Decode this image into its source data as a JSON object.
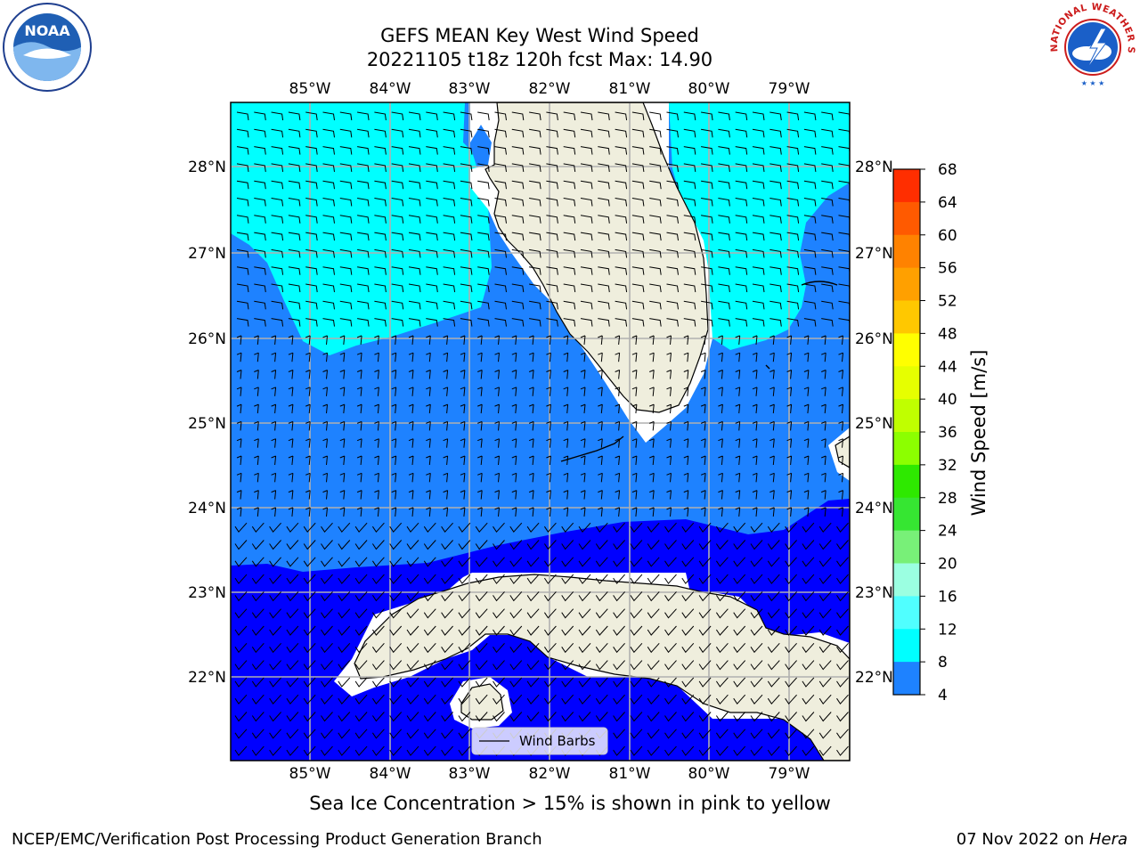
{
  "title": {
    "line1": "GEFS MEAN Key West Wind Speed",
    "line2": "20221105 t18z 120h fcst   Max: 14.90"
  },
  "map": {
    "lon_labels": [
      "85°W",
      "84°W",
      "83°W",
      "82°W",
      "81°W",
      "80°W",
      "79°W"
    ],
    "lat_labels": [
      "28°N",
      "27°N",
      "26°N",
      "25°N",
      "24°N",
      "23°N",
      "22°N"
    ],
    "colors": {
      "land": "#efeedd",
      "coast": "#000000",
      "grid": "#b0b0b0",
      "speed_4_8": "#0000ff",
      "speed_8_12": "#1e82ff",
      "speed_12_16": "#00ffff"
    },
    "legend_label": "Wind Barbs"
  },
  "colorbar": {
    "label": "Wind Speed [m/s]",
    "ticks": [
      "68",
      "64",
      "60",
      "56",
      "52",
      "48",
      "44",
      "40",
      "36",
      "32",
      "28",
      "24",
      "20",
      "16",
      "12",
      "8",
      "4"
    ],
    "colors": [
      "#ff0000",
      "#ff2e00",
      "#ff5a00",
      "#ff8200",
      "#ffa000",
      "#ffc800",
      "#ffff00",
      "#e6ff00",
      "#c0ff00",
      "#8cff00",
      "#2ee900",
      "#36e632",
      "#78f078",
      "#9bffe1",
      "#50ffff",
      "#00ffff",
      "#1e82ff",
      "#0000ff"
    ]
  },
  "subtitle": "Sea Ice Concentration > 15% is shown in pink to yellow",
  "footer": {
    "left": "NCEP/EMC/Verification Post Processing Product Generation Branch",
    "right_date": "07 Nov 2022 on ",
    "right_host": "Hera"
  },
  "logos": {
    "noaa_text": "NOAA",
    "nws_text": "NATIONAL WEATHER SERVICE"
  }
}
